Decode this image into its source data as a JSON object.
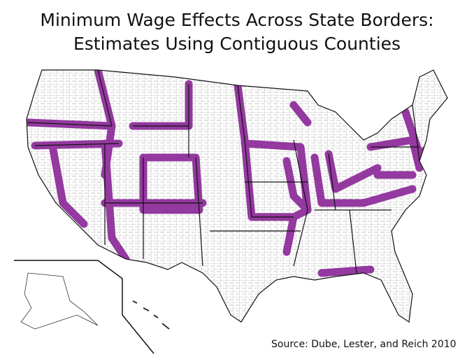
{
  "header": {
    "title": [
      "Minimum Wage Effects Across State Borders:",
      "Estimates Using Contiguous Counties"
    ]
  },
  "footer": {
    "source": "Source: Dube, Lester, and Reich  2010"
  }
}
